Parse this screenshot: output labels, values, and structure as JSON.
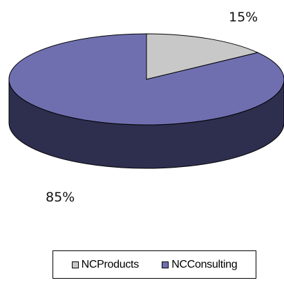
{
  "chart_data": {
    "type": "pie",
    "three_d": true,
    "title": "",
    "slices": [
      {
        "label": "NCProducts",
        "value": 15,
        "display": "15%",
        "color": "#c8c8c8",
        "side_color": "#8f8f8f"
      },
      {
        "label": "NCConsulting",
        "value": 85,
        "display": "85%",
        "color": "#6f6fb0",
        "side_color": "#2e2e4f"
      }
    ],
    "legend_position": "bottom"
  }
}
